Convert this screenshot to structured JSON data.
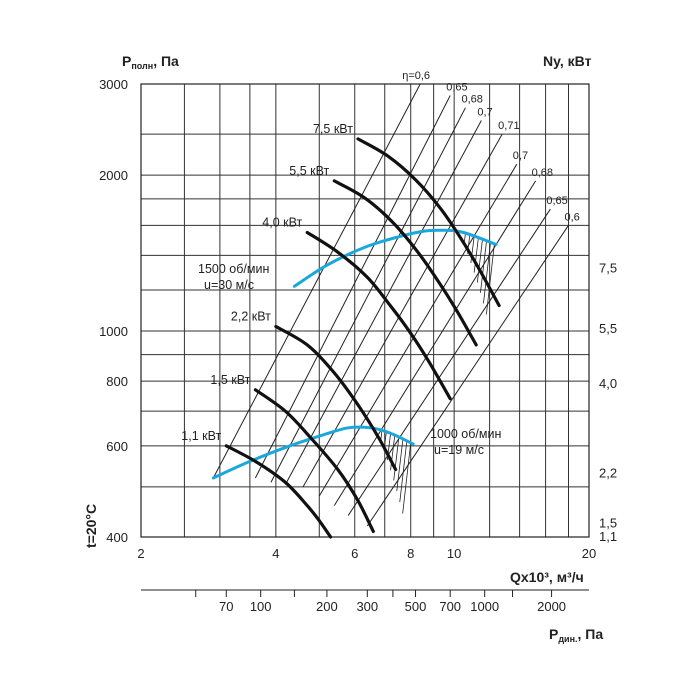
{
  "chart_data": {
    "type": "line",
    "title": "",
    "xlabel": "Qx10³, м³/ч",
    "ylabel": "Pполн, Па",
    "ylabel_main": "P",
    "ylabel_sub": "полн",
    "ylabel_unit": ", Па",
    "y2label": "Ny, кВт",
    "x2label_main": "P",
    "x2label_sub": "дин.",
    "x2label_unit": ", Па",
    "side_label": "t=20°C",
    "x_scale": "log",
    "y_scale": "log",
    "xlim": [
      2,
      20
    ],
    "ylim": [
      400,
      3000
    ],
    "x_ticks": [
      "2",
      "4",
      "6",
      "8",
      "10",
      "20"
    ],
    "x_tick_values": [
      2,
      4,
      6,
      8,
      10,
      20
    ],
    "x_grid": [
      2,
      2.5,
      3,
      3.5,
      4,
      5,
      6,
      7,
      8,
      9,
      10,
      12,
      14,
      16,
      18,
      20
    ],
    "y_ticks": [
      "400",
      "600",
      "800",
      "1000",
      "2000",
      "3000"
    ],
    "y_tick_values": [
      400,
      600,
      800,
      1000,
      2000,
      3000
    ],
    "y_grid": [
      400,
      500,
      600,
      700,
      800,
      900,
      1000,
      1200,
      1400,
      1600,
      1800,
      2000,
      2400,
      3000
    ],
    "dyn_pressure_ticks": [
      "70",
      "100",
      "200",
      "300",
      "500",
      "700",
      "1000",
      "2000"
    ],
    "dyn_pressure_tick_q": [
      3.1,
      3.7,
      5.2,
      6.4,
      8.2,
      9.8,
      11.7,
      16.5
    ],
    "dyn_pressure_minor_q": [
      2.65,
      4.4,
      7.3,
      13.5
    ],
    "right_axis_ticks": [
      {
        "label": "7,5",
        "p": 1320
      },
      {
        "label": "5,5",
        "p": 1010
      },
      {
        "label": "4,0",
        "p": 790
      },
      {
        "label": "2,2",
        "p": 530
      },
      {
        "label": "1,5",
        "p": 425
      },
      {
        "label": "1,1",
        "p": 400
      }
    ],
    "efficiency_lines": [
      {
        "label": "η=0,6",
        "q": [
          2.9,
          8.4
        ],
        "p": [
          520,
          3000
        ]
      },
      {
        "label": "0,65",
        "q": [
          3.6,
          9.8
        ],
        "p": [
          520,
          2850
        ]
      },
      {
        "label": "0,68",
        "q": [
          3.9,
          10.6
        ],
        "p": [
          510,
          2700
        ]
      },
      {
        "label": "0,7",
        "q": [
          4.2,
          11.5
        ],
        "p": [
          505,
          2550
        ]
      },
      {
        "label": "0,71",
        "q": [
          4.6,
          12.8
        ],
        "p": [
          500,
          2400
        ]
      },
      {
        "label": "0,7",
        "q": [
          5.0,
          13.8
        ],
        "p": [
          480,
          2100
        ]
      },
      {
        "label": "0,68",
        "q": [
          5.4,
          15.2
        ],
        "p": [
          460,
          1950
        ]
      },
      {
        "label": "0,65",
        "q": [
          5.8,
          16.4
        ],
        "p": [
          440,
          1720
        ]
      },
      {
        "label": "0,6",
        "q": [
          6.4,
          18.0
        ],
        "p": [
          420,
          1600
        ]
      }
    ],
    "series": [
      {
        "name": "7,5 кВт",
        "x": [
          6.1,
          7.1,
          8.2,
          9.3,
          10.3,
          11.3,
          12.6
        ],
        "y": [
          2350,
          2180,
          1960,
          1730,
          1520,
          1330,
          1120
        ]
      },
      {
        "name": "5,5 кВт",
        "x": [
          5.4,
          6.3,
          7.3,
          8.3,
          9.2,
          10.1,
          11.2
        ],
        "y": [
          1950,
          1810,
          1620,
          1420,
          1250,
          1100,
          940
        ]
      },
      {
        "name": "4,0 кВт",
        "x": [
          4.7,
          5.5,
          6.4,
          7.2,
          8.0,
          8.8,
          9.8
        ],
        "y": [
          1550,
          1420,
          1270,
          1120,
          990,
          870,
          740
        ]
      },
      {
        "name": "2,2 кВт",
        "x": [
          4.0,
          4.7,
          5.4,
          6.1,
          6.8,
          7.4
        ],
        "y": [
          1020,
          940,
          830,
          720,
          620,
          540
        ]
      },
      {
        "name": "1,5 кВт",
        "x": [
          3.6,
          4.2,
          4.8,
          5.5,
          6.1,
          6.6
        ],
        "y": [
          770,
          700,
          620,
          540,
          470,
          410
        ]
      },
      {
        "name": "1,1 кВт",
        "x": [
          3.1,
          3.6,
          4.2,
          4.7,
          5.0,
          5.3
        ],
        "y": [
          600,
          560,
          510,
          460,
          430,
          400
        ]
      }
    ],
    "fan_curves": [
      {
        "label1": "1500 об/мин",
        "label2": "u=30 м/с",
        "x": [
          4.4,
          5.2,
          6.3,
          7.5,
          8.6,
          9.5,
          10.5,
          12.4
        ],
        "y": [
          1220,
          1340,
          1450,
          1520,
          1560,
          1565,
          1550,
          1470
        ],
        "color": "#1aa8dc"
      },
      {
        "label1": "1000 об/мин",
        "label2": "u=19 м/с",
        "x": [
          2.9,
          3.5,
          4.3,
          5.1,
          5.8,
          6.5,
          7.2,
          8.1
        ],
        "y": [
          520,
          560,
          600,
          630,
          650,
          650,
          635,
          605
        ],
        "color": "#1aa8dc"
      }
    ],
    "grid": true
  }
}
